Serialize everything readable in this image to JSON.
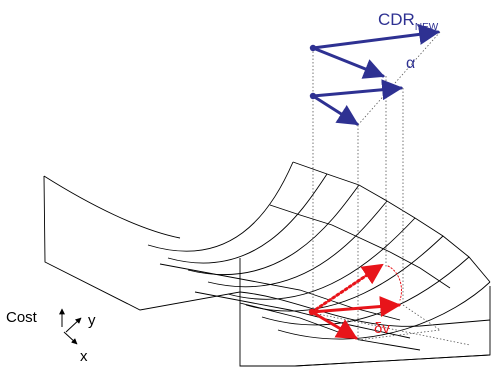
{
  "labels": {
    "cdr_main": "CDR",
    "cdr_sub": "NEW",
    "alpha": "α",
    "delta_v": "δv",
    "cost": "Cost",
    "axis_y": "y",
    "axis_x": "x"
  },
  "colors": {
    "blue_vectors": "#2e3192",
    "red_vectors": "#e8141a",
    "lines": "#000000",
    "guides": "#555555"
  }
}
